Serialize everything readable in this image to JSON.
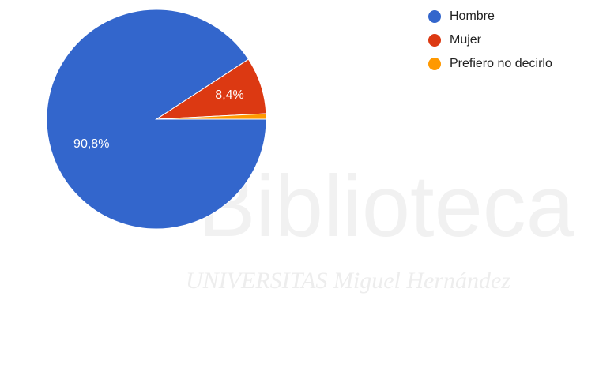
{
  "chart_data": {
    "type": "pie",
    "categories": [
      "Hombre",
      "Mujer",
      "Prefiero no decirlo"
    ],
    "values": [
      90.8,
      8.4,
      0.8
    ],
    "value_labels": [
      "90,8%",
      "8,4%",
      null
    ],
    "colors": [
      "#3366cc",
      "#dc3912",
      "#ff9900"
    ],
    "legend": "top-right"
  },
  "watermark": {
    "title": "Biblioteca",
    "subtitle": "UNIVERSITAS Miguel Hernández"
  }
}
